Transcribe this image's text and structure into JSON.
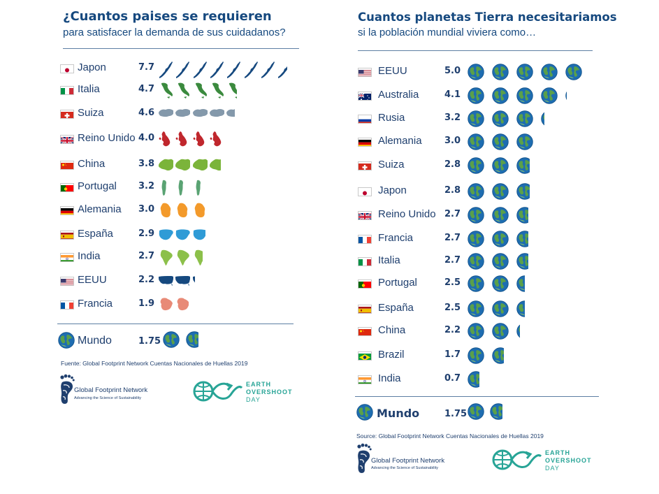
{
  "left": {
    "title": "¿Cuantos paises se requieren",
    "subtitle": "para satisfacer la demanda de sus cuidadanos?",
    "source": "Fuente: Global Footprint Network Cuentas Nacionales de Huellas 2019",
    "mundo_label": "Mundo",
    "mundo_value": "1.75"
  },
  "right": {
    "title": "Cuantos planetas Tierra necesitariamos",
    "subtitle": "si la población mundial viviera como…",
    "source": "Source: Global Footprint Network Cuentas Nacionales de Huellas 2019",
    "mundo_label": "Mundo",
    "mundo_value": "1.75"
  },
  "logos": {
    "gfn_name": "Global Footprint Network",
    "gfn_tagline": "Advancing the Science of Sustainability",
    "eod_line1": "EARTH",
    "eod_line2": "OVERSHOOT",
    "eod_line3": "DAY"
  },
  "colors": {
    "title": "#16497f",
    "text": "#1f3f6e",
    "teal": "#27a496",
    "ocean": "#1e6db1",
    "land": "#5aa04a"
  },
  "chart_data": [
    {
      "type": "bar",
      "title": "¿Cuantos paises se requieren",
      "subtitle": "para satisfacer la demanda de sus cuidadanos?",
      "unit": "icons (countries)",
      "categories": [
        "Japon",
        "Italia",
        "Suiza",
        "Reino Unido",
        "China",
        "Portugal",
        "Alemania",
        "España",
        "India",
        "EEUU",
        "Francia"
      ],
      "values": [
        7.7,
        4.7,
        4.6,
        4.0,
        3.8,
        3.2,
        3.0,
        2.9,
        2.7,
        2.2,
        1.9
      ],
      "value_labels": [
        "7.7",
        "4.7",
        "4.6",
        "4.0",
        "3.8",
        "3.2",
        "3.0",
        "2.9",
        "2.7",
        "2.2",
        "1.9"
      ],
      "icon_colors": [
        "#16497f",
        "#3b8a3e",
        "#8499ab",
        "#c0272d",
        "#7bb43a",
        "#5aa373",
        "#f39a2b",
        "#2f9bd6",
        "#8cc04a",
        "#16497f",
        "#e88a77"
      ],
      "flag_codes": [
        "jp",
        "it",
        "ch",
        "gb",
        "cn",
        "pt",
        "de",
        "es",
        "in",
        "us",
        "fr"
      ],
      "reference": {
        "label": "Mundo",
        "value": 1.75,
        "value_label": "1.75"
      }
    },
    {
      "type": "bar",
      "title": "Cuantos planetas Tierra necesitariamos",
      "subtitle": "si la población mundial viviera como…",
      "unit": "Earth planets",
      "categories": [
        "EEUU",
        "Australia",
        "Rusia",
        "Alemania",
        "Suiza",
        "Japon",
        "Reino Unido",
        "Francia",
        "Italia",
        "Portugal",
        "España",
        "China",
        "Brazil",
        "India"
      ],
      "values": [
        5.0,
        4.1,
        3.2,
        3.0,
        2.8,
        2.8,
        2.7,
        2.7,
        2.7,
        2.5,
        2.5,
        2.2,
        1.7,
        0.7
      ],
      "value_labels": [
        "5.0",
        "4.1",
        "3.2",
        "3.0",
        "2.8",
        "2.8",
        "2.7",
        "2.7",
        "2.7",
        "2.5",
        "2.5",
        "2.2",
        "1.7",
        "0.7"
      ],
      "flag_codes": [
        "us",
        "au",
        "ru",
        "de",
        "ch",
        "jp",
        "gb",
        "fr",
        "it",
        "pt",
        "es",
        "cn",
        "br",
        "in"
      ],
      "reference": {
        "label": "Mundo",
        "value": 1.75,
        "value_label": "1.75"
      }
    }
  ]
}
